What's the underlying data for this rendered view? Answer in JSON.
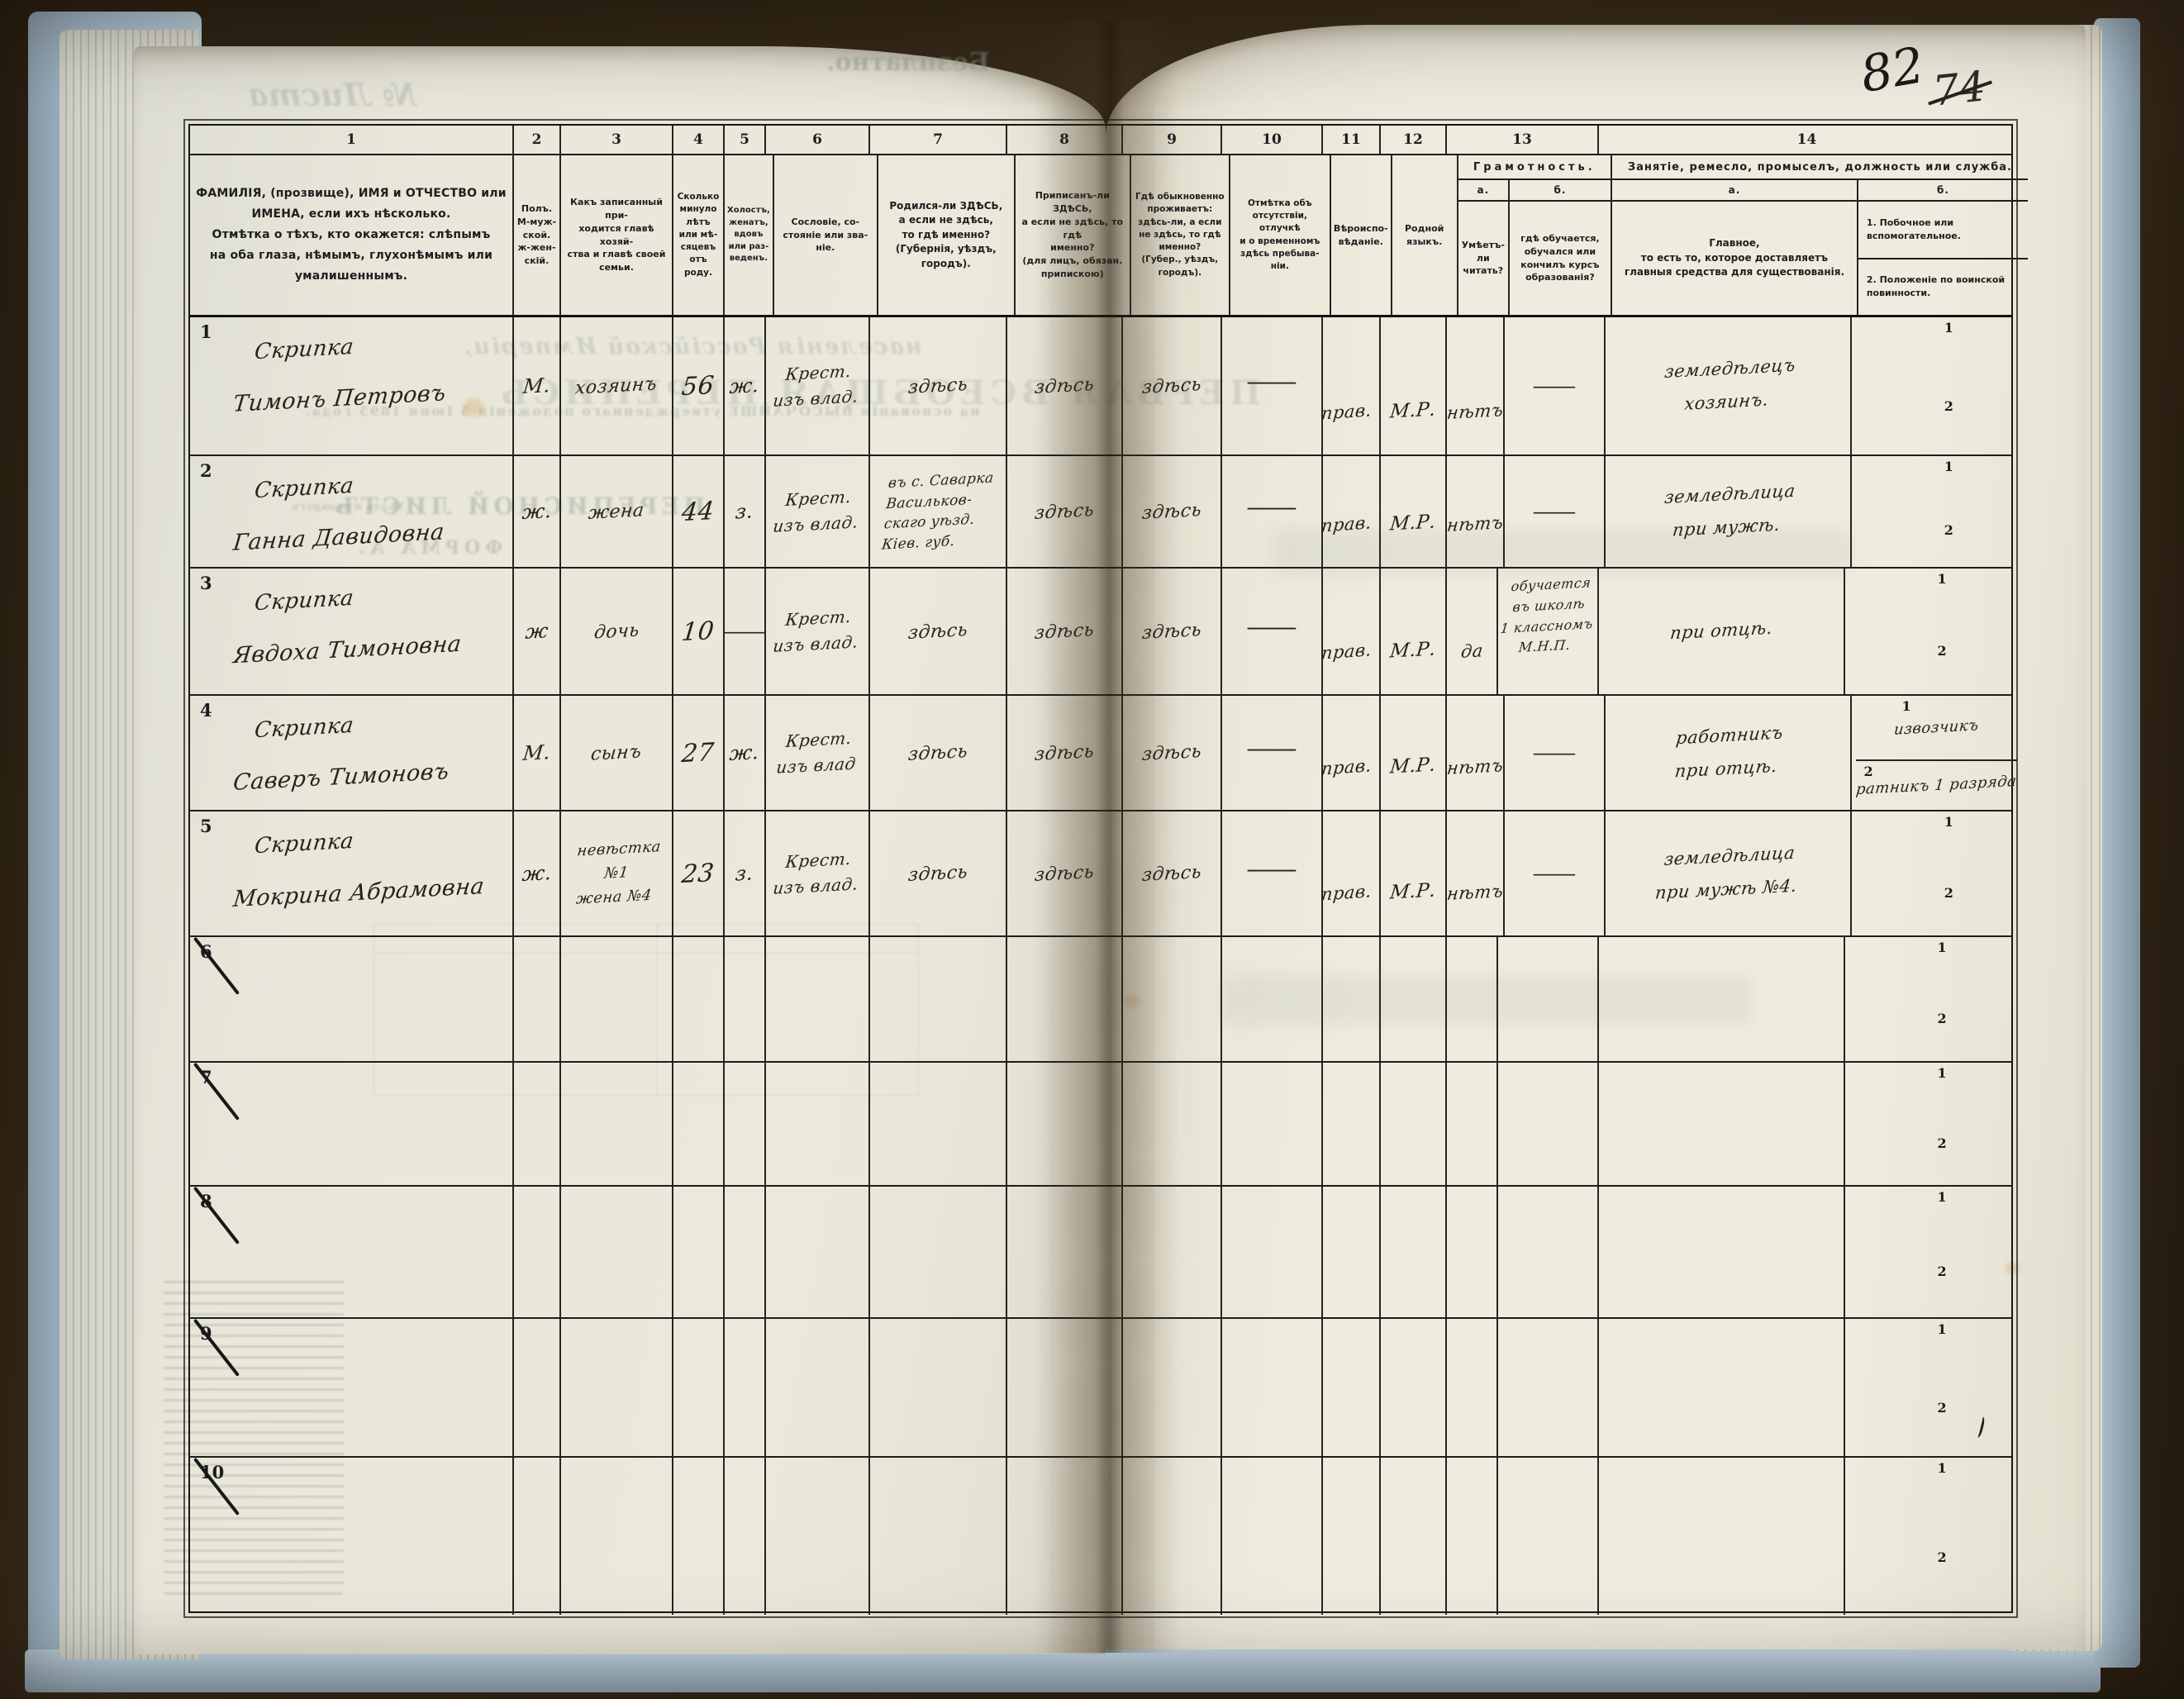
{
  "scene": {
    "folio_ink": "82",
    "folio_pencil": "74"
  },
  "ghosts": {
    "free_of_charge": "Безплатно.",
    "sheet_no": "№ Листа",
    "census_title": "ПЕРВАЯ ВСЕОБЩАЯ ПЕРЕПИСЬ",
    "census_subtitle": "населенія Россійской Имперіи,",
    "census_basis": "на основаніи ВЫСОЧАЙШЕ утвержденнаго положенія 5 Іюня 1895 года.",
    "sheet_title": "ПЕРЕПИСНОЙ ЛИСТЪ",
    "form_a": "ФОРМА А.",
    "uyezd": "Уѣздъ или округъ"
  },
  "table": {
    "col_numbers": [
      "1",
      "2",
      "3",
      "4",
      "5",
      "6",
      "7",
      "8",
      "9",
      "10",
      "11",
      "12",
      "13",
      "14"
    ],
    "headers": {
      "c1": "ФАМИЛІЯ, (прозвище), ИМЯ и ОТЧЕСТВО или\nИМЕНА, если ихъ нѣсколько.\nОтмѣтка о тѣхъ, кто окажется: слѣпымъ\nна оба глаза, нѣмымъ, глухонѣмымъ или\nумалишеннымъ.",
      "c2": "Полъ.\nМ-муж-\nской.\nж-жен-\nскій.",
      "c3": "Какъ записанный при-\nходится главѣ хозяй-\nства и главѣ своей\nсемьи.",
      "c4": "Сколько\nминуло\nлѣтъ\nили мѣ-\nсяцевъ\nотъ роду.",
      "c5": "Холостъ,\nженатъ,\nвдовъ\nили раз-\nведенъ.",
      "c6": "Сословіе, со-\nстояніе или зва-\nніе.",
      "c7": "Родился-ли ЗДѢСЬ,\nа если не здѣсь,\nто гдѣ именно?\n(Губернія, уѣздъ, городъ).",
      "c8": "Приписанъ-ли ЗДѢСЬ,\nа если не здѣсь, то гдѣ\nименно?\n(для лицъ, обязан.\nприпискою)",
      "c9": "Гдѣ обыкновенно\nпроживаетъ:\nздѣсь-ли, а если\nне здѣсь, то гдѣ\nименно?\n(Губер., уѣздъ, городъ).",
      "c10": "Отмѣтка объ\nотсутствіи, отлучкѣ\nи о временномъ\nздѣсь пребыва-\nніи.",
      "c11": "Вѣроиспо-\nвѣданіе.",
      "c12": "Родной\nязыкъ.",
      "c13_title": "Грамотность.",
      "c13a_label": "а.",
      "c13a": "Умѣетъ-\nли\nчитать?",
      "c13b_label": "б.",
      "c13b": "гдѣ обучается,\nобучался или\nкончилъ курсъ\nобразованія?",
      "c14_title": "Занятіе, ремесло, промыселъ, должность или служба.",
      "c14a_label": "а.",
      "c14a": "Главное,\nто есть то, которое доставляетъ\nглавныя средства для существованія.",
      "c14b_label": "б.",
      "c14b1": "1.  Побочное или вспомогательное.",
      "c14b2": "2.  Положеніе по воинской повинности."
    },
    "row_sub_labels": [
      "1",
      "2"
    ],
    "rows": [
      {
        "num": "1",
        "crossed": false,
        "surname": "Скрипка",
        "name": "Тимонъ Петровъ",
        "sex": "М.",
        "relation": "хозяинъ",
        "age": "56",
        "marital": "ж.",
        "estate": "Крест.\nизъ влад.",
        "born": "здѣсь",
        "registered": "здѣсь",
        "resides": "здѣсь",
        "absence": "—",
        "religion": "прав.",
        "language": "М.Р.",
        "reads": "нѣтъ",
        "education": "—",
        "occ_main": "земледѣлецъ\nхозяинъ.",
        "occ_side": "",
        "military": ""
      },
      {
        "num": "2",
        "crossed": false,
        "surname": "Скрипка",
        "name": "Ганна Давидовна",
        "sex": "ж.",
        "relation": "жена",
        "age": "44",
        "marital": "з.",
        "estate": "Крест.\nизъ влад.",
        "born": "въ с. Саварка\nВасильков-\nскаго уѣзд.\nКіев. губ.",
        "registered": "здѣсь",
        "resides": "здѣсь",
        "absence": "—",
        "religion": "прав.",
        "language": "М.Р.",
        "reads": "нѣтъ",
        "education": "—",
        "occ_main": "земледѣлица\nпри мужѣ.",
        "occ_side": "",
        "military": ""
      },
      {
        "num": "3",
        "crossed": false,
        "surname": "Скрипка",
        "name": "Явдоха Тимоновна",
        "sex": "ж",
        "relation": "дочь",
        "age": "10",
        "marital": "—",
        "estate": "Крест.\nизъ влад.",
        "born": "здѣсь",
        "registered": "здѣсь",
        "resides": "здѣсь",
        "absence": "—",
        "religion": "прав.",
        "language": "М.Р.",
        "reads": "да",
        "education": "обучается\nвъ школѣ\n1 классномъ\nМ.Н.П.",
        "occ_main": "при отцѣ.",
        "occ_side": "",
        "military": ""
      },
      {
        "num": "4",
        "crossed": false,
        "surname": "Скрипка",
        "name": "Саверъ Тимоновъ",
        "sex": "М.",
        "relation": "сынъ",
        "age": "27",
        "marital": "ж.",
        "estate": "Крест.\nизъ влад",
        "born": "здѣсь",
        "registered": "здѣсь",
        "resides": "здѣсь",
        "absence": "—",
        "religion": "прав.",
        "language": "М.Р.",
        "reads": "нѣтъ",
        "education": "—",
        "occ_main": "работникъ\nпри отцѣ.",
        "occ_side": "извозчикъ",
        "military": "ратникъ 1 разряда"
      },
      {
        "num": "5",
        "crossed": false,
        "surname": "Скрипка",
        "name": "Мокрина Абрамовна",
        "sex": "ж.",
        "relation": "невѣстка №1\nжена №4",
        "age": "23",
        "marital": "з.",
        "estate": "Крест.\nизъ влад.",
        "born": "здѣсь",
        "registered": "здѣсь",
        "resides": "здѣсь",
        "absence": "—",
        "religion": "прав.",
        "language": "М.Р.",
        "reads": "нѣтъ",
        "education": "—",
        "occ_main": "земледѣлица\nпри мужѣ №4.",
        "occ_side": "",
        "military": ""
      },
      {
        "num": "6",
        "crossed": true,
        "surname": "",
        "name": "",
        "sex": "",
        "relation": "",
        "age": "",
        "marital": "",
        "estate": "",
        "born": "",
        "registered": "",
        "resides": "",
        "absence": "",
        "religion": "",
        "language": "",
        "reads": "",
        "education": "",
        "occ_main": "",
        "occ_side": "",
        "military": ""
      },
      {
        "num": "7",
        "crossed": true,
        "surname": "",
        "name": "",
        "sex": "",
        "relation": "",
        "age": "",
        "marital": "",
        "estate": "",
        "born": "",
        "registered": "",
        "resides": "",
        "absence": "",
        "religion": "",
        "language": "",
        "reads": "",
        "education": "",
        "occ_main": "",
        "occ_side": "",
        "military": ""
      },
      {
        "num": "8",
        "crossed": true,
        "surname": "",
        "name": "",
        "sex": "",
        "relation": "",
        "age": "",
        "marital": "",
        "estate": "",
        "born": "",
        "registered": "",
        "resides": "",
        "absence": "",
        "religion": "",
        "language": "",
        "reads": "",
        "education": "",
        "occ_main": "",
        "occ_side": "",
        "military": ""
      },
      {
        "num": "9",
        "crossed": true,
        "surname": "",
        "name": "",
        "sex": "",
        "relation": "",
        "age": "",
        "marital": "",
        "estate": "",
        "born": "",
        "registered": "",
        "resides": "",
        "absence": "",
        "religion": "",
        "language": "",
        "reads": "",
        "education": "",
        "occ_main": "",
        "occ_side": "",
        "military": ""
      },
      {
        "num": "10",
        "crossed": true,
        "surname": "",
        "name": "",
        "sex": "",
        "relation": "",
        "age": "",
        "marital": "",
        "estate": "",
        "born": "",
        "registered": "",
        "resides": "",
        "absence": "",
        "religion": "",
        "language": "",
        "reads": "",
        "education": "",
        "occ_main": "",
        "occ_side": "",
        "military": ""
      }
    ]
  }
}
